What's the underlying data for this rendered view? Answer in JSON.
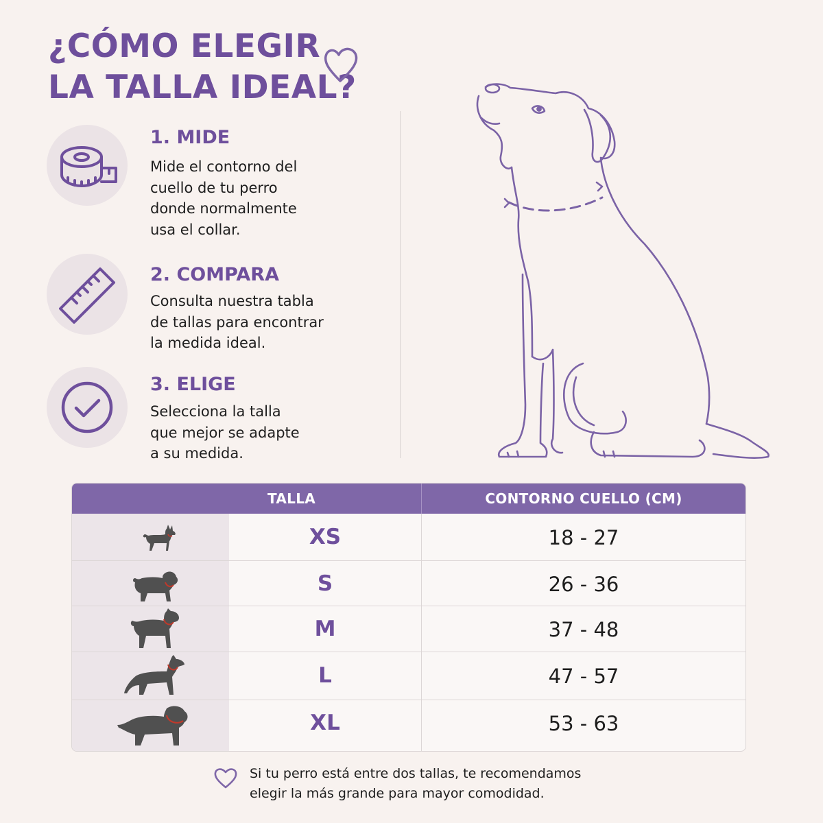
{
  "header": {
    "title_line1": "¿CÓMO ELEGIR",
    "title_line2": "LA TALLA IDEAL?"
  },
  "steps": [
    {
      "icon": "measuring-tape-icon",
      "title": "1. MIDE",
      "lines": [
        "Mide el contorno del",
        "cuello de tu perro",
        "donde normalmente",
        "usa el collar."
      ]
    },
    {
      "icon": "ruler-icon",
      "title": "2. COMPARA",
      "lines": [
        "Consulta nuestra tabla",
        "de tallas para encontrar",
        "la medida ideal."
      ]
    },
    {
      "icon": "checkmark-icon",
      "title": "3. ELIGE",
      "lines": [
        "Selecciona la talla",
        "que mejor se adapte",
        "a su medida."
      ]
    }
  ],
  "size_table": {
    "headers": {
      "size": "TALLA",
      "neck": "CONTORNO CUELLO (CM)"
    },
    "rows": [
      {
        "size": "XS",
        "range": "18 - 27",
        "icon": "chihuahua-icon"
      },
      {
        "size": "S",
        "range": "26 - 36",
        "icon": "bulldog-icon"
      },
      {
        "size": "M",
        "range": "37 - 48",
        "icon": "boxer-icon"
      },
      {
        "size": "L",
        "range": "47 - 57",
        "icon": "german-shepherd-icon"
      },
      {
        "size": "XL",
        "range": "53 - 63",
        "icon": "mastiff-icon"
      }
    ]
  },
  "note": {
    "line1": "Si tu perro está entre dos tallas, te recomendamos",
    "line2": "elegir la más grande para mayor comodidad."
  },
  "colors": {
    "accent": "#6e4f9c",
    "header_bg": "#7f67a8",
    "background": "#f8f2ef",
    "icon_circle": "#ebe3e6",
    "collar": "#c0392b"
  }
}
